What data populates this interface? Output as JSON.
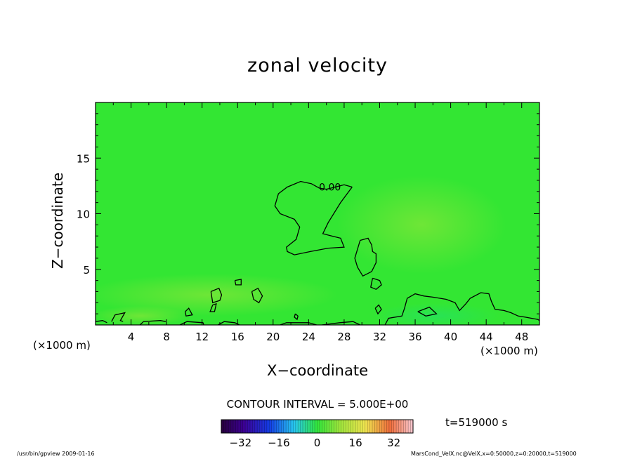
{
  "chart_data": {
    "type": "contour",
    "title": "zonal velocity",
    "xlabel": "X−coordinate",
    "ylabel": "Z−coordinate",
    "x_unit_label": "(×1000 m)",
    "xlim": [
      0,
      50
    ],
    "ylim": [
      0,
      20
    ],
    "x_ticks": [
      4,
      8,
      12,
      16,
      20,
      24,
      28,
      32,
      36,
      40,
      44,
      48
    ],
    "y_ticks": [
      5,
      10,
      15
    ],
    "contour_interval_label": "CONTOUR INTERVAL = 5.000E+00",
    "contour_labels": [
      {
        "text": "0.00",
        "x": 26.4,
        "y": 12.4
      }
    ],
    "zero_contours": [
      [
        [
          28.9,
          12.4
        ],
        [
          27.6,
          11.0
        ],
        [
          26.2,
          9.2
        ],
        [
          25.6,
          8.2
        ],
        [
          26.6,
          8.0
        ],
        [
          27.6,
          7.8
        ],
        [
          28.0,
          7.0
        ],
        [
          26.2,
          6.9
        ],
        [
          24.2,
          6.6
        ],
        [
          22.4,
          6.3
        ],
        [
          21.6,
          6.6
        ],
        [
          21.5,
          7.0
        ],
        [
          22.6,
          7.7
        ],
        [
          23.0,
          8.8
        ],
        [
          22.4,
          9.5
        ],
        [
          20.8,
          10.0
        ],
        [
          20.2,
          10.7
        ],
        [
          20.6,
          11.8
        ],
        [
          21.6,
          12.4
        ],
        [
          23.1,
          12.9
        ],
        [
          24.3,
          12.7
        ],
        [
          25.2,
          12.3
        ],
        [
          26.0,
          12.2
        ],
        [
          27.0,
          12.4
        ],
        [
          28.0,
          12.6
        ],
        [
          28.9,
          12.4
        ]
      ],
      [
        [
          29.8,
          7.6
        ],
        [
          30.7,
          7.8
        ],
        [
          31.1,
          7.2
        ],
        [
          31.2,
          6.6
        ],
        [
          31.6,
          6.4
        ],
        [
          31.6,
          5.6
        ],
        [
          31.1,
          4.8
        ],
        [
          30.1,
          4.4
        ],
        [
          29.5,
          5.2
        ],
        [
          29.2,
          6.0
        ],
        [
          29.5,
          6.8
        ],
        [
          29.8,
          7.6
        ]
      ],
      [
        [
          31.2,
          4.2
        ],
        [
          32.0,
          4.0
        ],
        [
          32.2,
          3.6
        ],
        [
          31.6,
          3.2
        ],
        [
          31.0,
          3.4
        ],
        [
          31.2,
          4.2
        ]
      ],
      [
        [
          15.7,
          4.0
        ],
        [
          16.4,
          4.1
        ],
        [
          16.4,
          3.6
        ],
        [
          15.8,
          3.6
        ],
        [
          15.7,
          4.0
        ]
      ],
      [
        [
          13.0,
          3.0
        ],
        [
          13.9,
          3.3
        ],
        [
          14.2,
          2.7
        ],
        [
          14.0,
          2.2
        ],
        [
          13.2,
          2.0
        ],
        [
          13.0,
          3.0
        ]
      ],
      [
        [
          13.2,
          1.8
        ],
        [
          13.6,
          1.9
        ],
        [
          13.4,
          1.2
        ],
        [
          12.9,
          1.2
        ],
        [
          13.2,
          1.8
        ]
      ],
      [
        [
          17.6,
          3.0
        ],
        [
          18.3,
          3.3
        ],
        [
          18.8,
          2.6
        ],
        [
          18.4,
          2.0
        ],
        [
          17.8,
          2.3
        ],
        [
          17.6,
          3.0
        ]
      ],
      [
        [
          10.1,
          1.2
        ],
        [
          10.5,
          1.5
        ],
        [
          10.9,
          0.9
        ],
        [
          10.2,
          0.8
        ],
        [
          10.1,
          1.2
        ]
      ],
      [
        [
          31.5,
          1.5
        ],
        [
          31.8,
          1.0
        ],
        [
          32.2,
          1.4
        ],
        [
          31.9,
          1.8
        ],
        [
          31.5,
          1.5
        ]
      ],
      [
        [
          22.5,
          1.0
        ],
        [
          22.8,
          0.8
        ],
        [
          22.7,
          0.5
        ],
        [
          22.4,
          0.7
        ],
        [
          22.5,
          1.0
        ]
      ],
      [
        [
          36.3,
          1.2
        ],
        [
          37.6,
          1.6
        ],
        [
          38.4,
          1.0
        ],
        [
          37.2,
          0.8
        ],
        [
          36.3,
          1.2
        ]
      ],
      [
        [
          0.0,
          0.3
        ],
        [
          0.8,
          0.4
        ],
        [
          1.3,
          0.2
        ]
      ],
      [
        [
          1.8,
          0.3
        ],
        [
          2.2,
          0.9
        ],
        [
          3.3,
          1.1
        ],
        [
          2.8,
          0.4
        ],
        [
          3.1,
          0.3
        ]
      ],
      [
        [
          5.0,
          0.0
        ],
        [
          5.4,
          0.3
        ],
        [
          7.3,
          0.4
        ],
        [
          7.9,
          0.3
        ]
      ],
      [
        [
          9.5,
          0.0
        ],
        [
          10.3,
          0.3
        ],
        [
          12.1,
          0.2
        ],
        [
          12.2,
          0.0
        ]
      ],
      [
        [
          13.8,
          0.0
        ],
        [
          14.5,
          0.3
        ],
        [
          15.7,
          0.2
        ],
        [
          16.2,
          0.0
        ]
      ],
      [
        [
          20.8,
          0.0
        ],
        [
          21.5,
          0.2
        ],
        [
          24.0,
          0.2
        ],
        [
          24.9,
          0.0
        ]
      ],
      [
        [
          25.5,
          0.0
        ],
        [
          27.5,
          0.2
        ],
        [
          29.0,
          0.3
        ],
        [
          29.8,
          0.0
        ]
      ],
      [
        [
          32.6,
          0.0
        ],
        [
          33.0,
          0.6
        ],
        [
          34.5,
          0.8
        ],
        [
          34.8,
          1.5
        ],
        [
          35.1,
          2.4
        ],
        [
          36.0,
          2.8
        ],
        [
          37.0,
          2.6
        ],
        [
          38.0,
          2.5
        ],
        [
          39.5,
          2.3
        ],
        [
          40.5,
          2.0
        ],
        [
          41.0,
          1.3
        ],
        [
          41.7,
          1.9
        ],
        [
          42.2,
          2.4
        ],
        [
          43.4,
          2.9
        ],
        [
          44.3,
          2.8
        ],
        [
          44.6,
          2.1
        ],
        [
          45.0,
          1.4
        ],
        [
          46.0,
          1.3
        ],
        [
          46.8,
          1.1
        ],
        [
          47.6,
          0.8
        ],
        [
          48.4,
          0.7
        ],
        [
          49.1,
          0.6
        ],
        [
          49.8,
          0.5
        ],
        [
          50.0,
          0.4
        ]
      ]
    ],
    "colorbar": {
      "ticks": [
        -32,
        -16,
        0,
        16,
        32
      ],
      "range": [
        -40,
        40
      ],
      "tick_labels": [
        "−32",
        "−16",
        "0",
        "16",
        "32"
      ]
    },
    "time_label": "t=519000 s",
    "fill_color": "#33e633"
  },
  "footer": {
    "left": "/usr/bin/gpview   2009-01-16",
    "right": "MarsCond_VelX.nc@VelX,x=0:50000,z=0:20000,t=519000"
  }
}
